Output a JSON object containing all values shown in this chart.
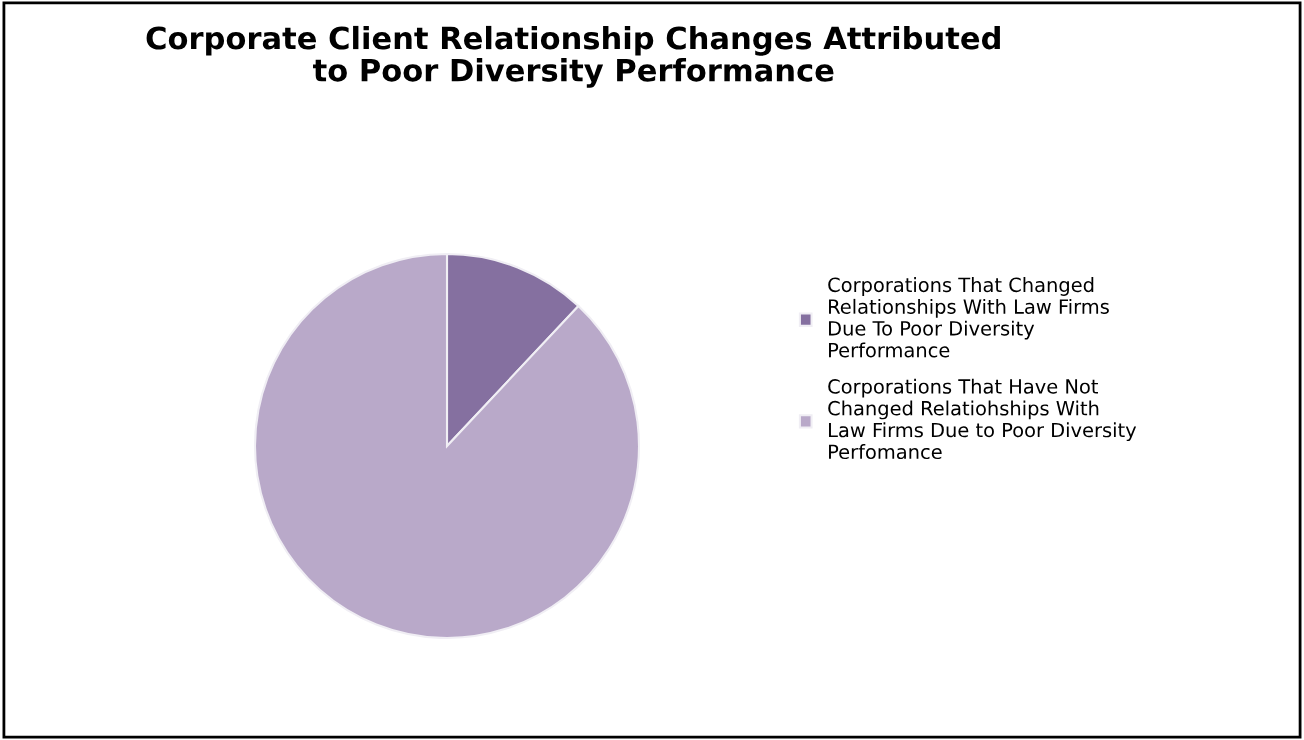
{
  "chart_data": {
    "type": "pie",
    "title": "Corporate Client Relationship Changes Attributed\nto Poor Diversity Performance",
    "categories": [
      "Corporations That Changed\nRelationships With Law Firms\nDue To Poor Diversity\nPerformance",
      "Corporations That Have Not\nChanged Relatiohships With\nLaw Firms Due to Poor Diversity\nPerfomance"
    ],
    "values": [
      12,
      88
    ],
    "colors": [
      "#8570a0",
      "#b9a9c9"
    ],
    "legend": "right"
  }
}
